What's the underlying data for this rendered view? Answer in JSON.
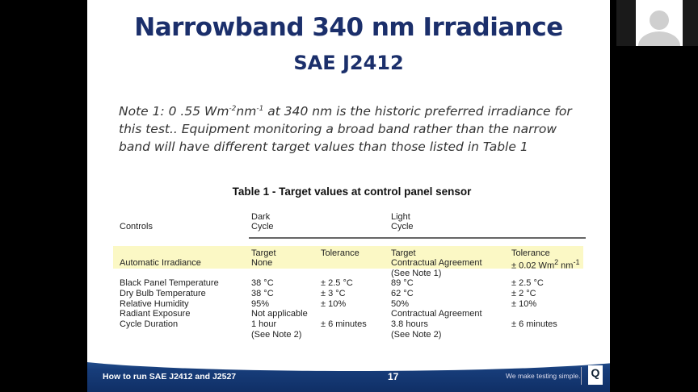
{
  "slide": {
    "title": "Narrowband 340 nm Irradiance",
    "subtitle": "SAE J2412",
    "note": {
      "a": "Note 1: 0 .55 Wm",
      "sup1": "-2",
      "b": "nm",
      "sup2": "-1",
      "c": " at 340 nm is the historic preferred irradiance for this test.. Equipment monitoring a broad band rather than the narrow band will have different target values than those listed in Table 1"
    },
    "table": {
      "caption": "Table 1 - Target values at control panel sensor",
      "header": {
        "controls": "Controls",
        "dark1": "Dark",
        "dark2": "Cycle",
        "light1": "Light",
        "light2": "Cycle"
      },
      "sub": {
        "target": "Target",
        "tolerance": "Tolerance"
      },
      "ai": {
        "label": "Automatic Irradiance",
        "dark_target": "None",
        "light_target": "Contractual Agreement",
        "light_tol": "± 0.02 Wm",
        "sup": "2",
        "unit": " nm",
        "sup2": "-1",
        "note": "(See Note 1)"
      },
      "rows": [
        {
          "label": "Black Panel Temperature",
          "dt": "38 °C",
          "dtol": "± 2.5 °C",
          "lt": "89 °C",
          "ltol": "± 2.5 °C"
        },
        {
          "label": "Dry Bulb Temperature",
          "dt": "38 °C",
          "dtol": "± 3 °C",
          "lt": "62 °C",
          "ltol": "± 2 °C"
        },
        {
          "label": "Relative Humidity",
          "dt": "95%",
          "dtol": "± 10%",
          "lt": "50%",
          "ltol": "± 10%"
        },
        {
          "label": "Radiant Exposure",
          "dt": "Not applicable",
          "dtol": "",
          "lt": "Contractual Agreement",
          "ltol": ""
        },
        {
          "label": "Cycle Duration",
          "dt": "1 hour",
          "dtol": "± 6 minutes",
          "lt": "3.8 hours",
          "ltol": "± 6 minutes"
        }
      ],
      "note2": "(See Note 2)"
    },
    "footer": {
      "left": "How to run SAE J2412 and J2527",
      "page": "17",
      "tagline": "We make testing simple.",
      "logo_text": "Q-LAB"
    }
  },
  "colors": {
    "title": "#1b2f6b",
    "highlight": "#fbf8c5",
    "footer": "#173d7a"
  }
}
